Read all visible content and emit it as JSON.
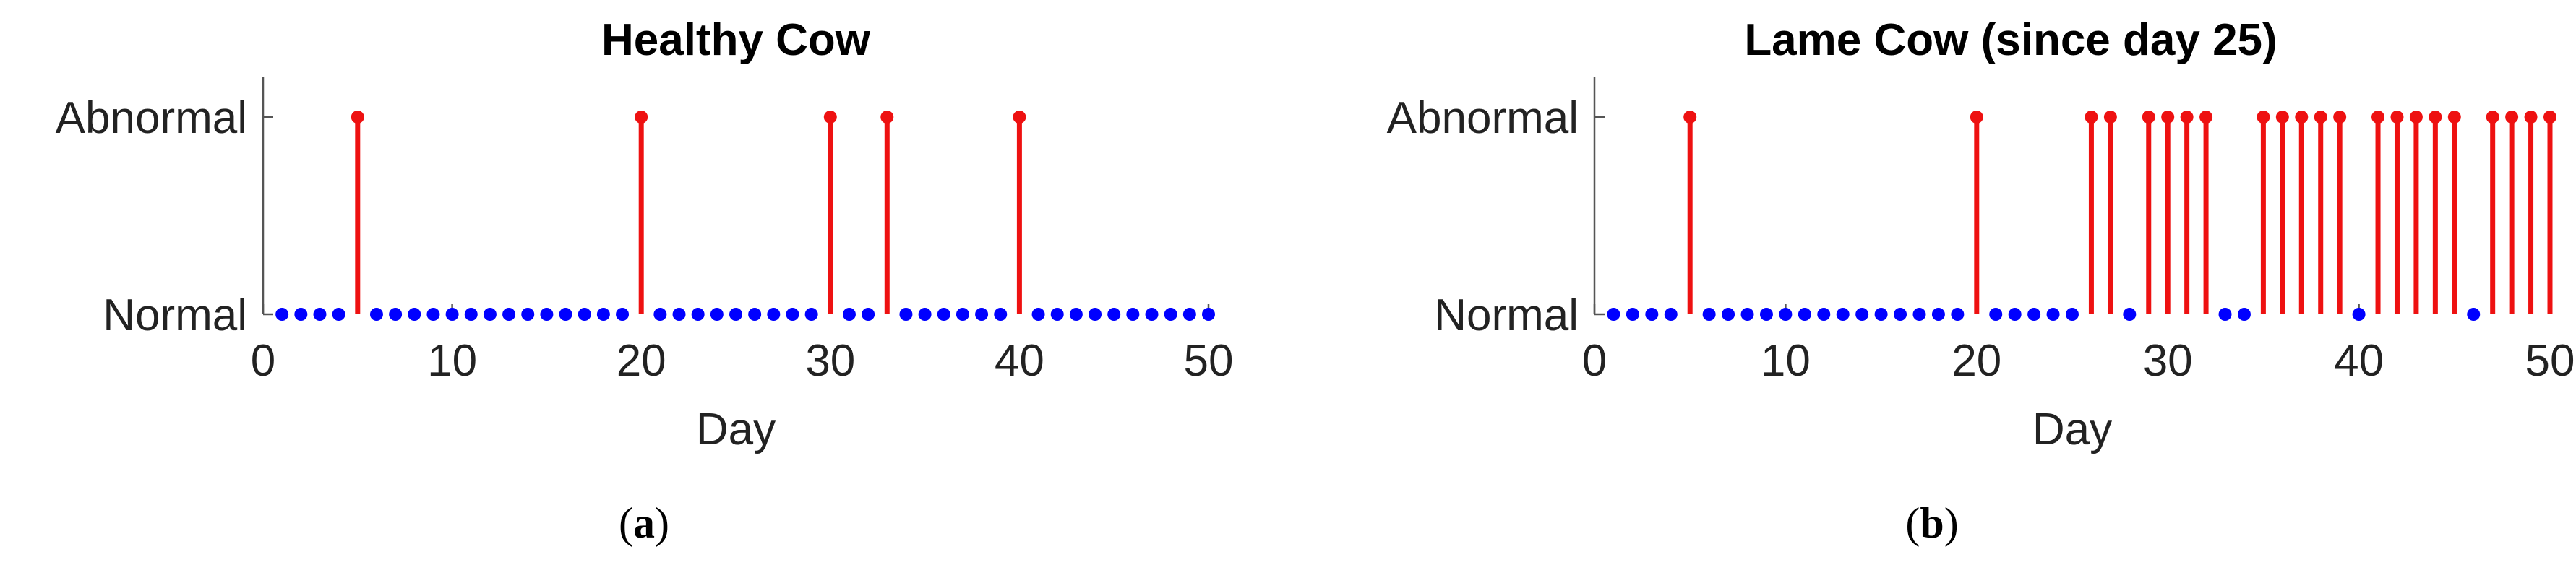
{
  "colors": {
    "normal": "#0000ff",
    "abnormal": "#ee1111"
  },
  "chart_data": [
    {
      "type": "stem",
      "title": "Healthy Cow",
      "xlabel": "Day",
      "ylabel": "",
      "xlim": [
        0,
        50
      ],
      "xticks": [
        0,
        10,
        20,
        30,
        40,
        50
      ],
      "yticks": [
        "Normal",
        "Abnormal"
      ],
      "ylim": [
        0,
        1
      ],
      "grid": false,
      "days": [
        1,
        2,
        3,
        4,
        5,
        6,
        7,
        8,
        9,
        10,
        11,
        12,
        13,
        14,
        15,
        16,
        17,
        18,
        19,
        20,
        21,
        22,
        23,
        24,
        25,
        26,
        27,
        28,
        29,
        30,
        31,
        32,
        33,
        34,
        35,
        36,
        37,
        38,
        39,
        40,
        41,
        42,
        43,
        44,
        45,
        46,
        47,
        48,
        49,
        50
      ],
      "status": [
        0,
        0,
        0,
        0,
        1,
        0,
        0,
        0,
        0,
        0,
        0,
        0,
        0,
        0,
        0,
        0,
        0,
        0,
        0,
        1,
        0,
        0,
        0,
        0,
        0,
        0,
        0,
        0,
        0,
        1,
        0,
        0,
        1,
        0,
        0,
        0,
        0,
        0,
        0,
        1,
        0,
        0,
        0,
        0,
        0,
        0,
        0,
        0,
        0,
        0
      ]
    },
    {
      "type": "stem",
      "title": "Lame Cow (since day 25)",
      "xlabel": "Day",
      "ylabel": "",
      "xlim": [
        0,
        50
      ],
      "xticks": [
        0,
        10,
        20,
        30,
        40,
        50
      ],
      "yticks": [
        "Normal",
        "Abnormal"
      ],
      "ylim": [
        0,
        1
      ],
      "grid": false,
      "days": [
        1,
        2,
        3,
        4,
        5,
        6,
        7,
        8,
        9,
        10,
        11,
        12,
        13,
        14,
        15,
        16,
        17,
        18,
        19,
        20,
        21,
        22,
        23,
        24,
        25,
        26,
        27,
        28,
        29,
        30,
        31,
        32,
        33,
        34,
        35,
        36,
        37,
        38,
        39,
        40,
        41,
        42,
        43,
        44,
        45,
        46,
        47,
        48,
        49,
        50
      ],
      "status": [
        0,
        0,
        0,
        0,
        1,
        0,
        0,
        0,
        0,
        0,
        0,
        0,
        0,
        0,
        0,
        0,
        0,
        0,
        0,
        1,
        0,
        0,
        0,
        0,
        0,
        1,
        1,
        0,
        1,
        1,
        1,
        1,
        0,
        0,
        1,
        1,
        1,
        1,
        1,
        0,
        1,
        1,
        1,
        1,
        1,
        0,
        1,
        1,
        1,
        1
      ]
    }
  ],
  "captions": [
    {
      "letter": "a"
    },
    {
      "letter": "b"
    }
  ]
}
